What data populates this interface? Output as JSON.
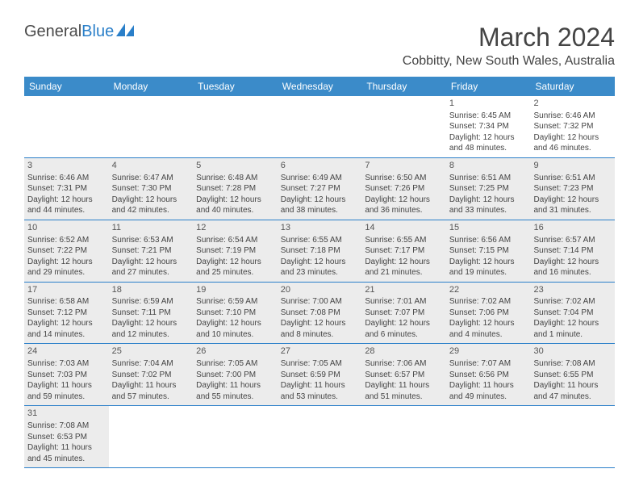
{
  "logo": {
    "text_main": "General",
    "text_accent": "Blue"
  },
  "header": {
    "month_title": "March 2024",
    "location": "Cobbitty, New South Wales, Australia"
  },
  "colors": {
    "header_bar": "#3b8bc9",
    "row_divider": "#2a7fc9",
    "shaded_cell": "#ececec",
    "text": "#444444",
    "logo_accent": "#2a7fc9"
  },
  "weekdays": [
    "Sunday",
    "Monday",
    "Tuesday",
    "Wednesday",
    "Thursday",
    "Friday",
    "Saturday"
  ],
  "weeks": [
    [
      {
        "day": "",
        "shaded": false
      },
      {
        "day": "",
        "shaded": false
      },
      {
        "day": "",
        "shaded": false
      },
      {
        "day": "",
        "shaded": false
      },
      {
        "day": "",
        "shaded": false
      },
      {
        "day": "1",
        "shaded": false,
        "sunrise": "Sunrise: 6:45 AM",
        "sunset": "Sunset: 7:34 PM",
        "daylight1": "Daylight: 12 hours",
        "daylight2": "and 48 minutes."
      },
      {
        "day": "2",
        "shaded": false,
        "sunrise": "Sunrise: 6:46 AM",
        "sunset": "Sunset: 7:32 PM",
        "daylight1": "Daylight: 12 hours",
        "daylight2": "and 46 minutes."
      }
    ],
    [
      {
        "day": "3",
        "shaded": true,
        "sunrise": "Sunrise: 6:46 AM",
        "sunset": "Sunset: 7:31 PM",
        "daylight1": "Daylight: 12 hours",
        "daylight2": "and 44 minutes."
      },
      {
        "day": "4",
        "shaded": true,
        "sunrise": "Sunrise: 6:47 AM",
        "sunset": "Sunset: 7:30 PM",
        "daylight1": "Daylight: 12 hours",
        "daylight2": "and 42 minutes."
      },
      {
        "day": "5",
        "shaded": true,
        "sunrise": "Sunrise: 6:48 AM",
        "sunset": "Sunset: 7:28 PM",
        "daylight1": "Daylight: 12 hours",
        "daylight2": "and 40 minutes."
      },
      {
        "day": "6",
        "shaded": true,
        "sunrise": "Sunrise: 6:49 AM",
        "sunset": "Sunset: 7:27 PM",
        "daylight1": "Daylight: 12 hours",
        "daylight2": "and 38 minutes."
      },
      {
        "day": "7",
        "shaded": true,
        "sunrise": "Sunrise: 6:50 AM",
        "sunset": "Sunset: 7:26 PM",
        "daylight1": "Daylight: 12 hours",
        "daylight2": "and 36 minutes."
      },
      {
        "day": "8",
        "shaded": true,
        "sunrise": "Sunrise: 6:51 AM",
        "sunset": "Sunset: 7:25 PM",
        "daylight1": "Daylight: 12 hours",
        "daylight2": "and 33 minutes."
      },
      {
        "day": "9",
        "shaded": true,
        "sunrise": "Sunrise: 6:51 AM",
        "sunset": "Sunset: 7:23 PM",
        "daylight1": "Daylight: 12 hours",
        "daylight2": "and 31 minutes."
      }
    ],
    [
      {
        "day": "10",
        "shaded": true,
        "sunrise": "Sunrise: 6:52 AM",
        "sunset": "Sunset: 7:22 PM",
        "daylight1": "Daylight: 12 hours",
        "daylight2": "and 29 minutes."
      },
      {
        "day": "11",
        "shaded": true,
        "sunrise": "Sunrise: 6:53 AM",
        "sunset": "Sunset: 7:21 PM",
        "daylight1": "Daylight: 12 hours",
        "daylight2": "and 27 minutes."
      },
      {
        "day": "12",
        "shaded": true,
        "sunrise": "Sunrise: 6:54 AM",
        "sunset": "Sunset: 7:19 PM",
        "daylight1": "Daylight: 12 hours",
        "daylight2": "and 25 minutes."
      },
      {
        "day": "13",
        "shaded": true,
        "sunrise": "Sunrise: 6:55 AM",
        "sunset": "Sunset: 7:18 PM",
        "daylight1": "Daylight: 12 hours",
        "daylight2": "and 23 minutes."
      },
      {
        "day": "14",
        "shaded": true,
        "sunrise": "Sunrise: 6:55 AM",
        "sunset": "Sunset: 7:17 PM",
        "daylight1": "Daylight: 12 hours",
        "daylight2": "and 21 minutes."
      },
      {
        "day": "15",
        "shaded": true,
        "sunrise": "Sunrise: 6:56 AM",
        "sunset": "Sunset: 7:15 PM",
        "daylight1": "Daylight: 12 hours",
        "daylight2": "and 19 minutes."
      },
      {
        "day": "16",
        "shaded": true,
        "sunrise": "Sunrise: 6:57 AM",
        "sunset": "Sunset: 7:14 PM",
        "daylight1": "Daylight: 12 hours",
        "daylight2": "and 16 minutes."
      }
    ],
    [
      {
        "day": "17",
        "shaded": true,
        "sunrise": "Sunrise: 6:58 AM",
        "sunset": "Sunset: 7:12 PM",
        "daylight1": "Daylight: 12 hours",
        "daylight2": "and 14 minutes."
      },
      {
        "day": "18",
        "shaded": true,
        "sunrise": "Sunrise: 6:59 AM",
        "sunset": "Sunset: 7:11 PM",
        "daylight1": "Daylight: 12 hours",
        "daylight2": "and 12 minutes."
      },
      {
        "day": "19",
        "shaded": true,
        "sunrise": "Sunrise: 6:59 AM",
        "sunset": "Sunset: 7:10 PM",
        "daylight1": "Daylight: 12 hours",
        "daylight2": "and 10 minutes."
      },
      {
        "day": "20",
        "shaded": true,
        "sunrise": "Sunrise: 7:00 AM",
        "sunset": "Sunset: 7:08 PM",
        "daylight1": "Daylight: 12 hours",
        "daylight2": "and 8 minutes."
      },
      {
        "day": "21",
        "shaded": true,
        "sunrise": "Sunrise: 7:01 AM",
        "sunset": "Sunset: 7:07 PM",
        "daylight1": "Daylight: 12 hours",
        "daylight2": "and 6 minutes."
      },
      {
        "day": "22",
        "shaded": true,
        "sunrise": "Sunrise: 7:02 AM",
        "sunset": "Sunset: 7:06 PM",
        "daylight1": "Daylight: 12 hours",
        "daylight2": "and 4 minutes."
      },
      {
        "day": "23",
        "shaded": true,
        "sunrise": "Sunrise: 7:02 AM",
        "sunset": "Sunset: 7:04 PM",
        "daylight1": "Daylight: 12 hours",
        "daylight2": "and 1 minute."
      }
    ],
    [
      {
        "day": "24",
        "shaded": true,
        "sunrise": "Sunrise: 7:03 AM",
        "sunset": "Sunset: 7:03 PM",
        "daylight1": "Daylight: 11 hours",
        "daylight2": "and 59 minutes."
      },
      {
        "day": "25",
        "shaded": true,
        "sunrise": "Sunrise: 7:04 AM",
        "sunset": "Sunset: 7:02 PM",
        "daylight1": "Daylight: 11 hours",
        "daylight2": "and 57 minutes."
      },
      {
        "day": "26",
        "shaded": true,
        "sunrise": "Sunrise: 7:05 AM",
        "sunset": "Sunset: 7:00 PM",
        "daylight1": "Daylight: 11 hours",
        "daylight2": "and 55 minutes."
      },
      {
        "day": "27",
        "shaded": true,
        "sunrise": "Sunrise: 7:05 AM",
        "sunset": "Sunset: 6:59 PM",
        "daylight1": "Daylight: 11 hours",
        "daylight2": "and 53 minutes."
      },
      {
        "day": "28",
        "shaded": true,
        "sunrise": "Sunrise: 7:06 AM",
        "sunset": "Sunset: 6:57 PM",
        "daylight1": "Daylight: 11 hours",
        "daylight2": "and 51 minutes."
      },
      {
        "day": "29",
        "shaded": true,
        "sunrise": "Sunrise: 7:07 AM",
        "sunset": "Sunset: 6:56 PM",
        "daylight1": "Daylight: 11 hours",
        "daylight2": "and 49 minutes."
      },
      {
        "day": "30",
        "shaded": true,
        "sunrise": "Sunrise: 7:08 AM",
        "sunset": "Sunset: 6:55 PM",
        "daylight1": "Daylight: 11 hours",
        "daylight2": "and 47 minutes."
      }
    ],
    [
      {
        "day": "31",
        "shaded": true,
        "sunrise": "Sunrise: 7:08 AM",
        "sunset": "Sunset: 6:53 PM",
        "daylight1": "Daylight: 11 hours",
        "daylight2": "and 45 minutes."
      },
      {
        "day": "",
        "shaded": false
      },
      {
        "day": "",
        "shaded": false
      },
      {
        "day": "",
        "shaded": false
      },
      {
        "day": "",
        "shaded": false
      },
      {
        "day": "",
        "shaded": false
      },
      {
        "day": "",
        "shaded": false
      }
    ]
  ]
}
